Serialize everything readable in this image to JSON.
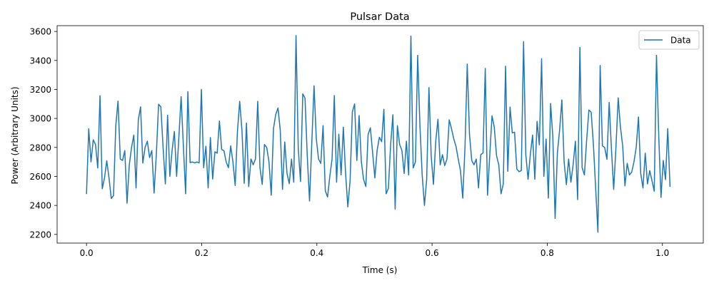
{
  "chart_data": {
    "type": "line",
    "title": "Pulsar Data",
    "xlabel": "Time (s)",
    "ylabel": "Power (Arbitrary Units)",
    "xlim": [
      -0.051,
      1.071
    ],
    "ylim": [
      2140,
      3640
    ],
    "xticks": [
      0.0,
      0.2,
      0.4,
      0.6,
      0.8,
      1.0
    ],
    "xtick_labels": [
      "0.0",
      "0.2",
      "0.4",
      "0.6",
      "0.8",
      "1.0"
    ],
    "yticks": [
      2200,
      2400,
      2600,
      2800,
      3000,
      3200,
      3400,
      3600
    ],
    "ytick_labels": [
      "2200",
      "2400",
      "2600",
      "2800",
      "3000",
      "3200",
      "3400",
      "3600"
    ],
    "grid": false,
    "legend_position": "top-right",
    "series": [
      {
        "name": "Data",
        "color": "#1f77b4",
        "x_start": 0.0,
        "x_step": 0.003912,
        "values": [
          2478,
          2928,
          2700,
          2853,
          2820,
          2658,
          3157,
          2515,
          2590,
          2708,
          2588,
          2448,
          2468,
          2950,
          3120,
          2720,
          2710,
          2778,
          2415,
          2680,
          2800,
          2885,
          2520,
          2990,
          3080,
          2692,
          2800,
          2843,
          2730,
          2778,
          2485,
          2750,
          3098,
          3080,
          2800,
          2548,
          3022,
          2600,
          2780,
          2910,
          2600,
          2870,
          3150,
          2810,
          2480,
          3185,
          2695,
          2700,
          2693,
          2700,
          2693,
          3200,
          2660,
          2808,
          2520,
          2868,
          2582,
          2770,
          2760,
          2982,
          2785,
          2778,
          2700,
          2660,
          2810,
          2700,
          2537,
          2910,
          3118,
          2920,
          2552,
          2968,
          2530,
          2720,
          2680,
          2720,
          3118,
          2660,
          2545,
          2820,
          2800,
          2700,
          2470,
          2930,
          3028,
          3072,
          2920,
          2510,
          2838,
          2620,
          2550,
          2720,
          2560,
          3572,
          2790,
          2565,
          3170,
          3140,
          2738,
          2430,
          2830,
          3225,
          2860,
          2720,
          2690,
          2950,
          2500,
          2458,
          2600,
          2720,
          3158,
          2560,
          2892,
          2610,
          2940,
          2620,
          2390,
          2570,
          3045,
          3100,
          2710,
          3020,
          2700,
          2578,
          2530,
          2890,
          2935,
          2763,
          2590,
          2780,
          2870,
          2840,
          3063,
          2480,
          2518,
          2820,
          3025,
          2375,
          2950,
          2820,
          2780,
          2620,
          2843,
          2610,
          3568,
          2658,
          2700,
          3435,
          2950,
          2610,
          2400,
          2580,
          3213,
          2740,
          2545,
          2840,
          2995,
          2680,
          2750,
          2675,
          2720,
          2990,
          2930,
          2860,
          2808,
          2720,
          2640,
          2450,
          2800,
          3375,
          2890,
          2710,
          2680,
          2720,
          2520,
          2750,
          2762,
          3345,
          2470,
          2748,
          3018,
          2940,
          2743,
          2680,
          2480,
          2548,
          3360,
          2635,
          3078,
          2900,
          2905,
          2650,
          2633,
          2640,
          3530,
          2750,
          2580,
          2750,
          2885,
          2580,
          2980,
          2818,
          3412,
          2600,
          2858,
          2450,
          3103,
          2870,
          2310,
          2760,
          2920,
          3128,
          2700,
          2543,
          2720,
          2560,
          2680,
          2843,
          2440,
          3490,
          2660,
          2610,
          2850,
          3058,
          3043,
          2820,
          2518,
          2215,
          3365,
          2810,
          2800,
          2718,
          3110,
          2790,
          2510,
          2800,
          3142,
          2940,
          2810,
          2535,
          2690,
          2610,
          2630,
          2700,
          2800,
          3010,
          2620,
          2520,
          2760,
          2548,
          2640,
          2570,
          2498,
          3435,
          2880,
          2455,
          2710,
          2578,
          2930,
          2528
        ]
      }
    ]
  }
}
